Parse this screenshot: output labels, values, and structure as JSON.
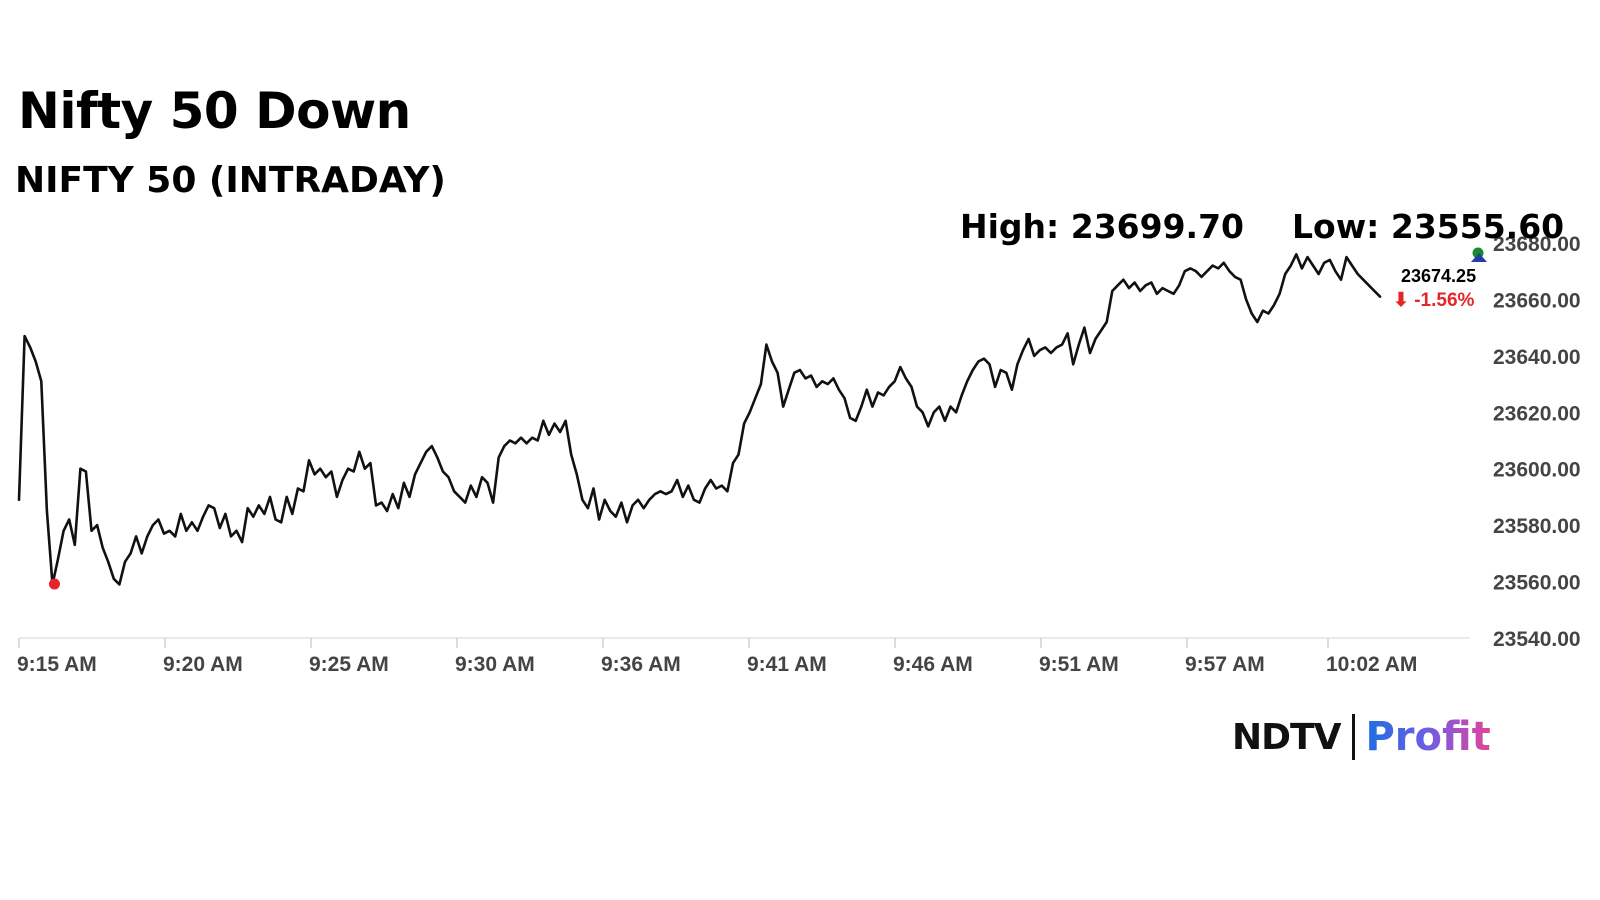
{
  "header": {
    "title": "Nifty 50 Down",
    "subtitle": "NIFTY 50 (INTRADAY)"
  },
  "stats": {
    "high_label": "High: 23699.70",
    "low_label": "Low: 23555.60"
  },
  "last": {
    "price": "23674.25",
    "change": "⬇ -1.56%"
  },
  "logo": {
    "brand": "NDTV",
    "product": "Profit"
  },
  "colors": {
    "line": "#111111",
    "low_marker": "#e5252a",
    "high_marker": "#1a8a2e",
    "last_marker": "#1f3fa6",
    "change_down": "#e5252a"
  },
  "chart_data": {
    "type": "line",
    "title": "NIFTY 50 (INTRADAY)",
    "xlabel": "",
    "ylabel": "",
    "ylim": [
      23540,
      23690
    ],
    "y_ticks": [
      23540,
      23560,
      23580,
      23600,
      23620,
      23640,
      23660,
      23680
    ],
    "y_tick_labels": [
      "23540.00",
      "23560.00",
      "23580.00",
      "23600.00",
      "23620.00",
      "23640.00",
      "23660.00",
      "23680.00"
    ],
    "x_tick_labels": [
      "9:15 AM",
      "9:20 AM",
      "9:25 AM",
      "9:30 AM",
      "9:36 AM",
      "9:41 AM",
      "9:46 AM",
      "9:51 AM",
      "9:57 AM",
      "10:02 AM"
    ],
    "grid": false,
    "series": [
      {
        "values": [
          23589,
          23647,
          23643,
          23638,
          23631,
          23585,
          23559,
          23568,
          23578,
          23582,
          23573,
          23600,
          23599,
          23578,
          23580,
          23572,
          23567,
          23561,
          23559,
          23567,
          23570,
          23576,
          23570,
          23576,
          23580,
          23582,
          23577,
          23578,
          23576,
          23584,
          23578,
          23581,
          23578,
          23583,
          23587,
          23586,
          23579,
          23584,
          23576,
          23578,
          23574,
          23586,
          23583,
          23587,
          23584,
          23590,
          23582,
          23581,
          23590,
          23584,
          23593,
          23592,
          23603,
          23598,
          23600,
          23597,
          23599,
          23590,
          23596,
          23600,
          23599,
          23606,
          23600,
          23602,
          23587,
          23588,
          23585,
          23591,
          23586,
          23595,
          23590,
          23598,
          23602,
          23606,
          23608,
          23604,
          23599,
          23597,
          23592,
          23590,
          23588,
          23594,
          23590,
          23597,
          23595,
          23588,
          23604,
          23608,
          23610,
          23609,
          23611,
          23609,
          23611,
          23610,
          23617,
          23612,
          23616,
          23613,
          23617,
          23605,
          23598,
          23589,
          23586,
          23593,
          23582,
          23589,
          23585,
          23583,
          23588,
          23581,
          23587,
          23589,
          23586,
          23589,
          23591,
          23592,
          23591,
          23592,
          23596,
          23590,
          23594,
          23589,
          23588,
          23593,
          23596,
          23593,
          23594,
          23592,
          23602,
          23605,
          23616,
          23620,
          23625,
          23630,
          23644,
          23638,
          23634,
          23622,
          23628,
          23634,
          23635,
          23632,
          23633,
          23629,
          23631,
          23630,
          23632,
          23628,
          23625,
          23618,
          23617,
          23622,
          23628,
          23622,
          23627,
          23626,
          23629,
          23631,
          23636,
          23632,
          23629,
          23622,
          23620,
          23615,
          23620,
          23622,
          23617,
          23622,
          23620,
          23626,
          23631,
          23635,
          23638,
          23639,
          23637,
          23629,
          23635,
          23634,
          23628,
          23637,
          23642,
          23646,
          23640,
          23642,
          23643,
          23641,
          23643,
          23644,
          23648,
          23637,
          23644,
          23650,
          23641,
          23646,
          23649,
          23652,
          23663,
          23665,
          23667,
          23664,
          23666,
          23663,
          23665,
          23666,
          23662,
          23664,
          23663,
          23662,
          23665,
          23670,
          23671,
          23670,
          23668,
          23670,
          23672,
          23671,
          23673,
          23670,
          23668,
          23667,
          23660,
          23655,
          23652,
          23656,
          23655,
          23658,
          23662,
          23669,
          23672,
          23676,
          23671,
          23675,
          23672,
          23669,
          23673,
          23674,
          23670,
          23667,
          23675,
          23672,
          23669,
          23667,
          23665,
          23663,
          23661
        ]
      }
    ],
    "low": 23555.6,
    "high": 23699.7,
    "last": 23674.25,
    "change_pct": -1.56
  }
}
